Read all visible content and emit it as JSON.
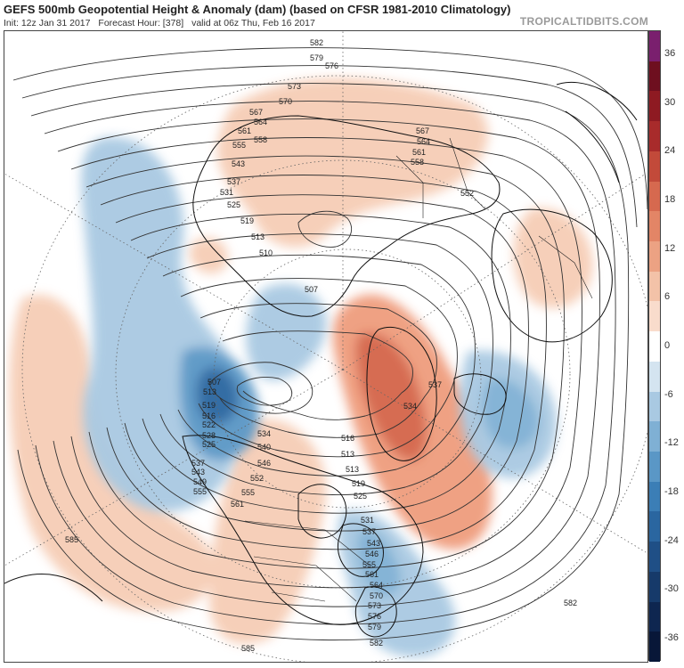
{
  "header": {
    "title": "GEFS 500mb Geopotential Height & Anomaly (dam) (based on CFSR 1981-2010 Climatology)",
    "init": "Init: 12z Jan 31 2017",
    "forecast_hour": "Forecast Hour: [378]",
    "valid": "valid at 06z Thu, Feb 16 2017",
    "brand": "TROPICALTIDBITS.COM"
  },
  "colorbar": {
    "ticks": [
      "36",
      "30",
      "24",
      "18",
      "12",
      "6",
      "0",
      "-6",
      "-12",
      "-18",
      "-24",
      "-30",
      "-36"
    ],
    "colors": [
      "#7a1f6e",
      "#6e0f1f",
      "#8e1a22",
      "#a82b2b",
      "#c24a3a",
      "#d6694f",
      "#e38566",
      "#eca283",
      "#f3c2a8",
      "#f9dccc",
      "#ffffff",
      "#d4e4f0",
      "#a9c9e2",
      "#7fb0d4",
      "#5a97c6",
      "#3b7eb6",
      "#2a66a0",
      "#1f4f86",
      "#163a6a",
      "#0e2650",
      "#081738"
    ]
  },
  "contours": {
    "labels": [
      "582",
      "579",
      "576",
      "573",
      "570",
      "567",
      "564",
      "561",
      "558",
      "555",
      "549",
      "543",
      "537",
      "531",
      "525",
      "519",
      "513",
      "510",
      "507",
      "552",
      "534",
      "546",
      "540",
      "528",
      "522",
      "516",
      "585"
    ]
  }
}
